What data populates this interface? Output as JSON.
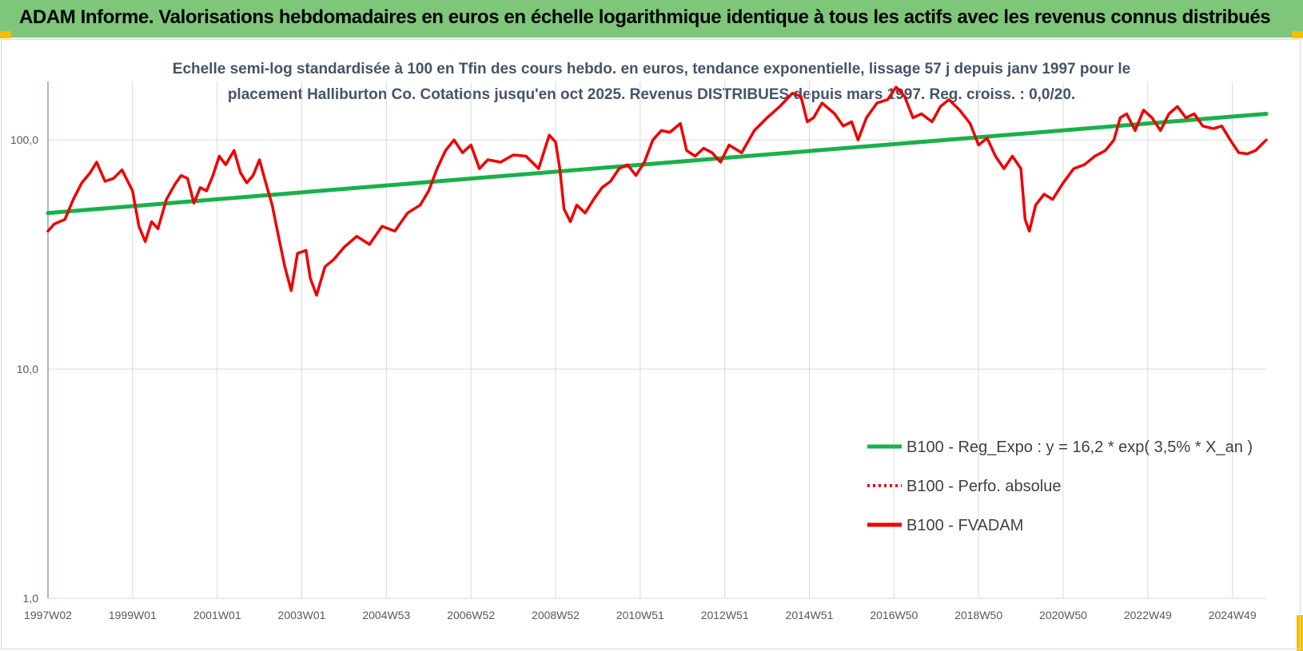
{
  "page": {
    "title": "ADAM Informe. Valorisations hebdomadaires en euros en échelle logarithmique identique à tous les actifs avec les revenus connus distribués"
  },
  "colors": {
    "banner": "#7dc67a",
    "regression": "#1ab04a",
    "fvadam": "#ee0000",
    "perfo": "#ee0000",
    "grid": "#d9d9d9",
    "accent_corner": "#f2c000"
  },
  "chart_data": {
    "type": "line",
    "subtitle_lines": [
      "Echelle semi-log standardisée à 100 en Tfin des cours hebdo. en euros, tendance exponentielle, lissage 57 j depuis janv 1997 pour le",
      "placement Halliburton Co. Cotations jusqu'en oct 2025.  Revenus DISTRIBUES depuis mars 1997. Reg. croiss. : 0,0/20."
    ],
    "y_scale": "log",
    "ylim": [
      1,
      180
    ],
    "y_ticks": [
      {
        "value": 1,
        "label": "1,0"
      },
      {
        "value": 10,
        "label": "10,0"
      },
      {
        "value": 100,
        "label": "100,0"
      }
    ],
    "xlim": [
      1997.0,
      2025.8
    ],
    "x_tick_labels": [
      {
        "x": 1997.0,
        "label": "1997W02"
      },
      {
        "x": 1999.0,
        "label": "1999W01"
      },
      {
        "x": 2001.0,
        "label": "2001W01"
      },
      {
        "x": 2003.0,
        "label": "2003W01"
      },
      {
        "x": 2005.0,
        "label": "2004W53"
      },
      {
        "x": 2007.0,
        "label": "2006W52"
      },
      {
        "x": 2009.0,
        "label": "2008W52"
      },
      {
        "x": 2011.0,
        "label": "2010W51"
      },
      {
        "x": 2013.0,
        "label": "2012W51"
      },
      {
        "x": 2015.0,
        "label": "2014W51"
      },
      {
        "x": 2017.0,
        "label": "2016W50"
      },
      {
        "x": 2019.0,
        "label": "2018W50"
      },
      {
        "x": 2021.0,
        "label": "2020W50"
      },
      {
        "x": 2023.0,
        "label": "2022W49"
      },
      {
        "x": 2025.0,
        "label": "2024W49"
      }
    ],
    "grid": true,
    "legend_position": "right-middle",
    "series": [
      {
        "name": "B100 - Reg_Expo : y = 16,2 * exp( 3,5% *  X_an )",
        "style": "solid",
        "color": "#1ab04a",
        "points": [
          [
            1997.0,
            48
          ],
          [
            2025.8,
            130
          ]
        ]
      },
      {
        "name": "B100 - Perfo. absolue",
        "style": "dotted",
        "color": "#ee0000",
        "points": []
      },
      {
        "name": "B100 - FVADAM",
        "style": "solid",
        "color": "#ee0000",
        "points": [
          [
            1997.0,
            40
          ],
          [
            1997.15,
            43
          ],
          [
            1997.4,
            45
          ],
          [
            1997.6,
            55
          ],
          [
            1997.8,
            65
          ],
          [
            1998.0,
            72
          ],
          [
            1998.15,
            80
          ],
          [
            1998.35,
            66
          ],
          [
            1998.55,
            68
          ],
          [
            1998.75,
            74
          ],
          [
            1999.0,
            60
          ],
          [
            1999.15,
            42
          ],
          [
            1999.3,
            36
          ],
          [
            1999.45,
            44
          ],
          [
            1999.6,
            41
          ],
          [
            1999.8,
            55
          ],
          [
            2000.0,
            64
          ],
          [
            2000.15,
            70
          ],
          [
            2000.3,
            68
          ],
          [
            2000.45,
            53
          ],
          [
            2000.6,
            62
          ],
          [
            2000.75,
            60
          ],
          [
            2000.9,
            70
          ],
          [
            2001.05,
            85
          ],
          [
            2001.2,
            78
          ],
          [
            2001.4,
            90
          ],
          [
            2001.55,
            72
          ],
          [
            2001.7,
            65
          ],
          [
            2001.85,
            70
          ],
          [
            2002.0,
            82
          ],
          [
            2002.15,
            65
          ],
          [
            2002.3,
            52
          ],
          [
            2002.45,
            38
          ],
          [
            2002.6,
            28
          ],
          [
            2002.75,
            22
          ],
          [
            2002.9,
            32
          ],
          [
            2003.1,
            33
          ],
          [
            2003.2,
            25
          ],
          [
            2003.35,
            21
          ],
          [
            2003.55,
            28
          ],
          [
            2003.75,
            30
          ],
          [
            2004.0,
            34
          ],
          [
            2004.3,
            38
          ],
          [
            2004.6,
            35
          ],
          [
            2004.9,
            42
          ],
          [
            2005.2,
            40
          ],
          [
            2005.5,
            48
          ],
          [
            2005.8,
            52
          ],
          [
            2006.0,
            60
          ],
          [
            2006.2,
            75
          ],
          [
            2006.4,
            90
          ],
          [
            2006.6,
            100
          ],
          [
            2006.8,
            88
          ],
          [
            2007.0,
            95
          ],
          [
            2007.2,
            75
          ],
          [
            2007.4,
            82
          ],
          [
            2007.7,
            80
          ],
          [
            2008.0,
            86
          ],
          [
            2008.3,
            85
          ],
          [
            2008.6,
            75
          ],
          [
            2008.85,
            105
          ],
          [
            2009.0,
            98
          ],
          [
            2009.1,
            75
          ],
          [
            2009.2,
            50
          ],
          [
            2009.35,
            44
          ],
          [
            2009.5,
            52
          ],
          [
            2009.7,
            48
          ],
          [
            2009.9,
            55
          ],
          [
            2010.1,
            62
          ],
          [
            2010.3,
            66
          ],
          [
            2010.5,
            75
          ],
          [
            2010.7,
            78
          ],
          [
            2010.9,
            70
          ],
          [
            2011.1,
            80
          ],
          [
            2011.3,
            100
          ],
          [
            2011.5,
            110
          ],
          [
            2011.7,
            108
          ],
          [
            2011.95,
            118
          ],
          [
            2012.1,
            90
          ],
          [
            2012.3,
            85
          ],
          [
            2012.5,
            92
          ],
          [
            2012.7,
            88
          ],
          [
            2012.9,
            80
          ],
          [
            2013.1,
            95
          ],
          [
            2013.4,
            88
          ],
          [
            2013.7,
            110
          ],
          [
            2014.0,
            125
          ],
          [
            2014.3,
            140
          ],
          [
            2014.6,
            160
          ],
          [
            2014.8,
            155
          ],
          [
            2014.95,
            120
          ],
          [
            2015.1,
            125
          ],
          [
            2015.3,
            145
          ],
          [
            2015.6,
            130
          ],
          [
            2015.8,
            115
          ],
          [
            2016.0,
            120
          ],
          [
            2016.15,
            100
          ],
          [
            2016.35,
            125
          ],
          [
            2016.6,
            145
          ],
          [
            2016.85,
            150
          ],
          [
            2017.05,
            170
          ],
          [
            2017.25,
            155
          ],
          [
            2017.45,
            125
          ],
          [
            2017.65,
            130
          ],
          [
            2017.9,
            120
          ],
          [
            2018.1,
            140
          ],
          [
            2018.3,
            150
          ],
          [
            2018.55,
            135
          ],
          [
            2018.8,
            118
          ],
          [
            2019.0,
            95
          ],
          [
            2019.2,
            102
          ],
          [
            2019.4,
            85
          ],
          [
            2019.6,
            75
          ],
          [
            2019.8,
            85
          ],
          [
            2020.0,
            75
          ],
          [
            2020.1,
            45
          ],
          [
            2020.2,
            40
          ],
          [
            2020.35,
            52
          ],
          [
            2020.55,
            58
          ],
          [
            2020.75,
            55
          ],
          [
            2021.0,
            65
          ],
          [
            2021.25,
            75
          ],
          [
            2021.5,
            78
          ],
          [
            2021.75,
            85
          ],
          [
            2022.0,
            90
          ],
          [
            2022.2,
            100
          ],
          [
            2022.35,
            125
          ],
          [
            2022.5,
            130
          ],
          [
            2022.7,
            110
          ],
          [
            2022.9,
            135
          ],
          [
            2023.1,
            125
          ],
          [
            2023.3,
            110
          ],
          [
            2023.5,
            130
          ],
          [
            2023.7,
            140
          ],
          [
            2023.9,
            125
          ],
          [
            2024.1,
            130
          ],
          [
            2024.3,
            115
          ],
          [
            2024.55,
            112
          ],
          [
            2024.75,
            115
          ],
          [
            2024.95,
            100
          ],
          [
            2025.15,
            88
          ],
          [
            2025.35,
            87
          ],
          [
            2025.55,
            90
          ],
          [
            2025.8,
            100
          ]
        ]
      }
    ]
  }
}
